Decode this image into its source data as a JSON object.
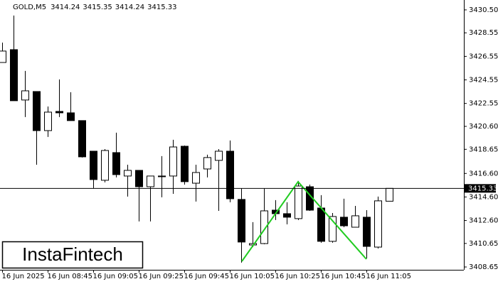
{
  "brand": "InstaFintech",
  "chart_data": {
    "type": "candlestick",
    "title": "GOLD,M5",
    "header_values": [
      3414.24,
      3415.35,
      3414.24,
      3415.33
    ],
    "categories": [
      "16 Jun 2025",
      null,
      null,
      null,
      "16 Jun 08:45",
      null,
      null,
      null,
      "16 Jun 09:05",
      null,
      null,
      null,
      "16 Jun 09:25",
      null,
      null,
      null,
      "16 Jun 09:45",
      null,
      null,
      null,
      "16 Jun 10:05",
      null,
      null,
      null,
      "16 Jun 10:25",
      null,
      null,
      null,
      "16 Jun 10:45",
      null,
      null,
      null,
      "16 Jun 11:05",
      null,
      null
    ],
    "open": [
      3426.03,
      3427.12,
      3422.84,
      3423.56,
      3420.24,
      3421.87,
      3421.75,
      3421.09,
      3418.49,
      3416.02,
      3418.37,
      3416.38,
      3416.86,
      3415.47,
      3416.32,
      3416.38,
      3418.91,
      3415.77,
      3416.98,
      3417.71,
      3418.49,
      3414.39,
      3410.52,
      3410.64,
      3413.48,
      3413.18,
      3412.76,
      3415.47,
      3413.66,
      3410.83,
      3412.88,
      3412.03,
      3412.88,
      3410.34,
      3414.24
    ],
    "high": [
      3427.72,
      3430.02,
      3425.31,
      3423.56,
      3422.29,
      3424.59,
      3423.5,
      3421.09,
      3418.49,
      3418.67,
      3420.06,
      3417.34,
      3416.86,
      3416.38,
      3418.07,
      3419.46,
      3418.97,
      3417.34,
      3418.19,
      3418.67,
      3419.4,
      3415.35,
      3412.46,
      3415.35,
      3414.33,
      3414.15,
      3415.96,
      3415.65,
      3414.75,
      3413.24,
      3414.45,
      3413.84,
      3413.48,
      3414.63,
      3415.35
    ],
    "low": [
      3426.03,
      3422.78,
      3421.39,
      3417.34,
      3419.7,
      3421.39,
      3421.09,
      3417.95,
      3415.35,
      3415.84,
      3416.26,
      3414.63,
      3412.52,
      3412.52,
      3414.57,
      3414.87,
      3415.65,
      3414.21,
      3416.26,
      3413.42,
      3414.15,
      3409.02,
      3410.34,
      3410.58,
      3412.64,
      3412.27,
      3412.64,
      3413.42,
      3410.71,
      3410.71,
      3412.03,
      3412.03,
      3409.38,
      3410.22,
      3414.24
    ],
    "close": [
      3427.0,
      3422.78,
      3423.62,
      3420.24,
      3421.81,
      3421.75,
      3421.09,
      3418.01,
      3416.08,
      3418.55,
      3416.5,
      3416.86,
      3415.47,
      3416.38,
      3416.38,
      3418.85,
      3415.9,
      3416.68,
      3417.95,
      3418.49,
      3414.45,
      3410.77,
      3410.64,
      3413.42,
      3413.18,
      3412.88,
      3415.53,
      3413.48,
      3410.83,
      3412.94,
      3412.15,
      3413.0,
      3410.4,
      3414.27,
      3415.33
    ],
    "up_color": "#ffffff",
    "down_color": "#000000",
    "pattern_color": "#22cc22",
    "current_price": 3415.33,
    "ylim": [
      3408.41,
      3431.34
    ],
    "yticks": [
      {
        "value": 3430.5,
        "label": "3430.50"
      },
      3428.55,
      3426.55,
      3424.55,
      3422.55,
      {
        "value": 3420.6,
        "label": "3420.60"
      },
      3418.65,
      {
        "value": 3416.6,
        "label": "3416.60"
      },
      {
        "value": 3414.6,
        "label": "3414.60"
      },
      {
        "value": 3412.6,
        "label": "3412.60"
      },
      3410.65,
      3408.65
    ]
  }
}
